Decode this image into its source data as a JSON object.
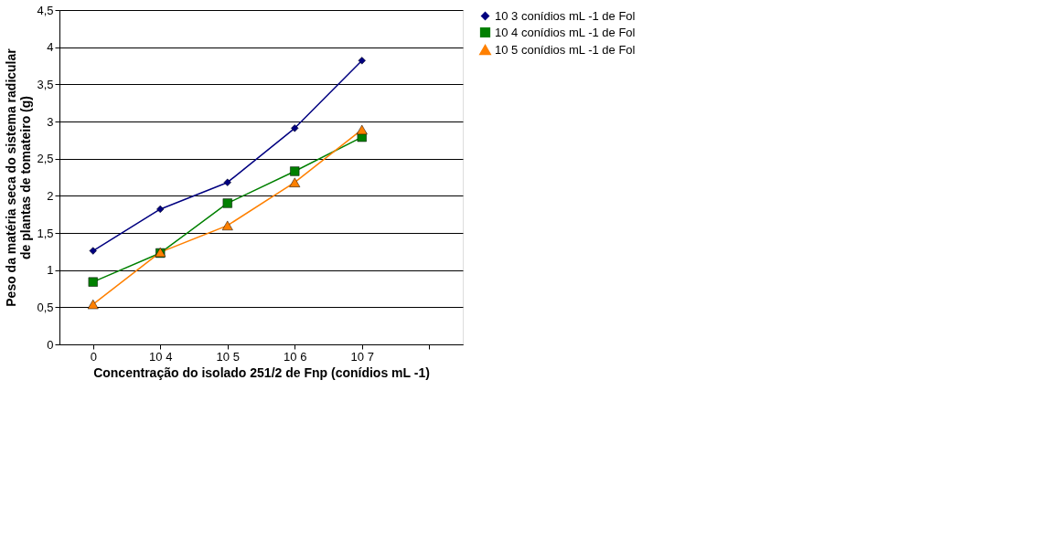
{
  "chart_data": {
    "type": "line",
    "xlabel": "Concentração do isolado 251/2 de Fnp (conídios mL -1)",
    "ylabel": "Peso da matéria seca do sistema radicular de plantas de tomateiro (g)",
    "categories": [
      "0",
      "10 4",
      "10 5",
      "10 6",
      "10 7",
      null
    ],
    "series": [
      {
        "name": "10 3 conídios mL -1 de Fol",
        "color": "#000080",
        "marker": "diamond",
        "values": [
          1.26,
          1.82,
          2.18,
          2.91,
          3.82,
          null
        ]
      },
      {
        "name": "10 4 conídios mL -1 de Fol",
        "color": "#008000",
        "marker": "square",
        "values": [
          0.84,
          1.23,
          1.9,
          2.33,
          2.79,
          null
        ]
      },
      {
        "name": "10 5 conídios mL -1 de Fol",
        "color": "#ff8000",
        "marker": "triangle",
        "values": [
          0.54,
          1.24,
          1.6,
          2.18,
          2.89,
          null
        ]
      }
    ],
    "ylim": [
      0,
      4.5
    ],
    "yticks": [
      0,
      {
        "value": 0.5,
        "label": "0,5"
      },
      1,
      {
        "value": 1.5,
        "label": "1,5"
      },
      2,
      {
        "value": 2.5,
        "label": "2,5"
      },
      3,
      {
        "value": 3.5,
        "label": "3,5"
      },
      4,
      {
        "value": 4.5,
        "label": "4,5"
      }
    ],
    "grid": "y",
    "legend": "right",
    "line_style": "solid"
  }
}
